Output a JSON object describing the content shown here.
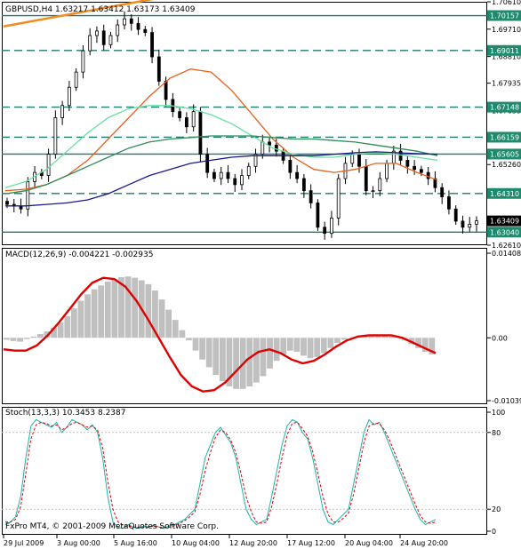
{
  "chart_data": [
    {
      "type": "candlestick",
      "title": "GBPUSD,H4  1.63217 1.63412 1.63173 1.63409",
      "ylim": [
        1.6261,
        1.7061
      ],
      "y_ticks": [
        "1.70610",
        "1.69710",
        "1.68810",
        "1.67935",
        "1.67035",
        "1.66135",
        "1.65260",
        "1.64360",
        "1.63460",
        "1.62610"
      ],
      "price_close_path": [
        1.6395,
        1.639,
        1.638,
        1.647,
        1.65,
        1.649,
        1.656,
        1.668,
        1.672,
        1.678,
        1.683,
        1.69,
        1.695,
        1.6965,
        1.692,
        1.695,
        1.6985,
        1.7005,
        1.699,
        1.697,
        1.696,
        1.688,
        1.68,
        1.674,
        1.67,
        1.668,
        1.665,
        1.67,
        1.656,
        1.65,
        1.648,
        1.65,
        1.648,
        1.646,
        1.649,
        1.652,
        1.656,
        1.66,
        1.659,
        1.657,
        1.654,
        1.65,
        1.648,
        1.644,
        1.64,
        1.632,
        1.63,
        1.635,
        1.648,
        1.653,
        1.656,
        1.652,
        1.644,
        1.644,
        1.648,
        1.653,
        1.657,
        1.654,
        1.652,
        1.651,
        1.65,
        1.648,
        1.645,
        1.642,
        1.638,
        1.634,
        1.632,
        1.633,
        1.6341
      ],
      "horizontal_levels": [
        {
          "price": "1.70157",
          "style": "solid"
        },
        {
          "price": "1.69011",
          "style": "dashed"
        },
        {
          "price": "1.67148",
          "style": "dashed"
        },
        {
          "price": "1.66159",
          "style": "dashed"
        },
        {
          "price": "1.65605",
          "style": "solid"
        },
        {
          "price": "1.64310",
          "style": "dashed"
        },
        {
          "price": "1.63040",
          "style": "solid"
        }
      ],
      "current_price": "1.63409",
      "moving_averages": [
        {
          "color": "#e8601c",
          "path": [
            1.644,
            1.6445,
            1.646,
            1.649,
            1.654,
            1.661,
            1.668,
            1.675,
            1.681,
            1.684,
            1.683,
            1.677,
            1.669,
            1.661,
            1.655,
            1.651,
            1.65,
            1.651,
            1.653,
            1.653,
            1.65,
            1.6475
          ]
        },
        {
          "color": "#66e0a0",
          "path": [
            1.645,
            1.647,
            1.651,
            1.657,
            1.663,
            1.668,
            1.671,
            1.672,
            1.672,
            1.671,
            1.669,
            1.666,
            1.662,
            1.658,
            1.656,
            1.655,
            1.655,
            1.656,
            1.6565,
            1.656,
            1.655,
            1.654
          ]
        },
        {
          "color": "#2e8b57",
          "path": [
            1.643,
            1.644,
            1.646,
            1.649,
            1.652,
            1.655,
            1.658,
            1.66,
            1.661,
            1.6615,
            1.662,
            1.662,
            1.662,
            1.6615,
            1.661,
            1.661,
            1.6605,
            1.66,
            1.659,
            1.658,
            1.657,
            1.6555
          ]
        },
        {
          "color": "#1a1a8c",
          "path": [
            1.639,
            1.639,
            1.6395,
            1.64,
            1.641,
            1.643,
            1.646,
            1.649,
            1.651,
            1.653,
            1.654,
            1.655,
            1.6555,
            1.6555,
            1.6555,
            1.6555,
            1.656,
            1.6565,
            1.6568,
            1.6565,
            1.6562,
            1.656
          ]
        }
      ],
      "trendline": {
        "color": "#f28c1e",
        "from": 1.698,
        "to": 1.707
      }
    },
    {
      "type": "bar+line",
      "title": "MACD(12,26,9) -0.004221 -0.002935",
      "ylim": [
        -0.01039,
        0.01408
      ],
      "y_ticks": [
        "0.014089",
        "0.00",
        "-0.010393"
      ],
      "histogram": [
        -0.0003,
        -0.0005,
        -0.0006,
        -0.0002,
        0.0002,
        0.0006,
        0.001,
        0.0016,
        0.0024,
        0.0034,
        0.0046,
        0.0058,
        0.0068,
        0.0076,
        0.0082,
        0.0088,
        0.0092,
        0.0095,
        0.0096,
        0.0094,
        0.009,
        0.0084,
        0.0074,
        0.006,
        0.0044,
        0.0028,
        0.0012,
        -0.0004,
        -0.002,
        -0.0034,
        -0.0046,
        -0.0058,
        -0.0068,
        -0.0076,
        -0.008,
        -0.008,
        -0.0076,
        -0.007,
        -0.006,
        -0.0048,
        -0.0036,
        -0.0026,
        -0.002,
        -0.0022,
        -0.0028,
        -0.0032,
        -0.003,
        -0.0024,
        -0.0016,
        -0.0008,
        -0.0003,
        0.0,
        0.0002,
        0.0003,
        0.0004,
        0.0004,
        0.0003,
        0.0002,
        0.0,
        -0.0004,
        -0.001,
        -0.0016,
        -0.0022,
        -0.0026
      ],
      "signal": [
        -0.0018,
        -0.002,
        -0.002,
        -0.0012,
        0.0004,
        0.0024,
        0.0046,
        0.0068,
        0.0086,
        0.0094,
        0.0092,
        0.008,
        0.0058,
        0.003,
        0.0,
        -0.003,
        -0.0058,
        -0.0076,
        -0.0084,
        -0.0082,
        -0.007,
        -0.0052,
        -0.0034,
        -0.0022,
        -0.0018,
        -0.0024,
        -0.0034,
        -0.004,
        -0.0036,
        -0.0026,
        -0.0014,
        -0.0004,
        0.0002,
        0.0004,
        0.0004,
        0.0004,
        0.0,
        -0.0008,
        -0.0016,
        -0.0024
      ],
      "signal_color": "#e00000",
      "histogram_color": "#c0c0c0"
    },
    {
      "type": "line",
      "title": "Stoch(13,3,3) 10.3453 8.2387",
      "ylim": [
        0,
        100
      ],
      "y_ticks": [
        "100",
        "80",
        "20",
        "0"
      ],
      "main": [
        8,
        10,
        14,
        30,
        60,
        85,
        90,
        88,
        86,
        84,
        88,
        80,
        84,
        90,
        88,
        86,
        82,
        86,
        80,
        60,
        30,
        10,
        6,
        5,
        8,
        6,
        5,
        7,
        6,
        8,
        6,
        5,
        7,
        8,
        10,
        12,
        16,
        20,
        40,
        60,
        70,
        80,
        84,
        78,
        72,
        60,
        40,
        20,
        12,
        8,
        10,
        12,
        30,
        50,
        70,
        85,
        90,
        88,
        80,
        75,
        60,
        40,
        20,
        10,
        8,
        12,
        16,
        20,
        40,
        60,
        80,
        90,
        86,
        88,
        80,
        70,
        60,
        50,
        40,
        30,
        20,
        12,
        8,
        10,
        12
      ],
      "signal": [
        10,
        10,
        12,
        22,
        48,
        75,
        86,
        88,
        87,
        85,
        86,
        82,
        84,
        87,
        88,
        86,
        84,
        85,
        82,
        68,
        42,
        20,
        10,
        7,
        7,
        6,
        6,
        6,
        6,
        7,
        6,
        6,
        6,
        7,
        9,
        11,
        14,
        18,
        32,
        50,
        64,
        76,
        82,
        80,
        74,
        64,
        48,
        30,
        18,
        10,
        9,
        10,
        22,
        40,
        60,
        78,
        87,
        88,
        83,
        77,
        65,
        48,
        30,
        16,
        10,
        10,
        13,
        17,
        32,
        52,
        72,
        85,
        87,
        87,
        82,
        74,
        64,
        54,
        44,
        34,
        24,
        15,
        10,
        9,
        10
      ],
      "main_color": "#20b2aa",
      "signal_color": "#e00000",
      "levels": [
        80,
        20
      ]
    }
  ],
  "x_ticks": [
    "29 Jul 2009",
    "3 Aug 00:00",
    "5 Aug 16:00",
    "10 Aug 04:00",
    "12 Aug 20:00",
    "17 Aug 12:00",
    "20 Aug 04:00",
    "24 Aug 20:00"
  ],
  "copyright": "FxPro MT4, © 2001-2009 MetaQuotes Software Corp."
}
